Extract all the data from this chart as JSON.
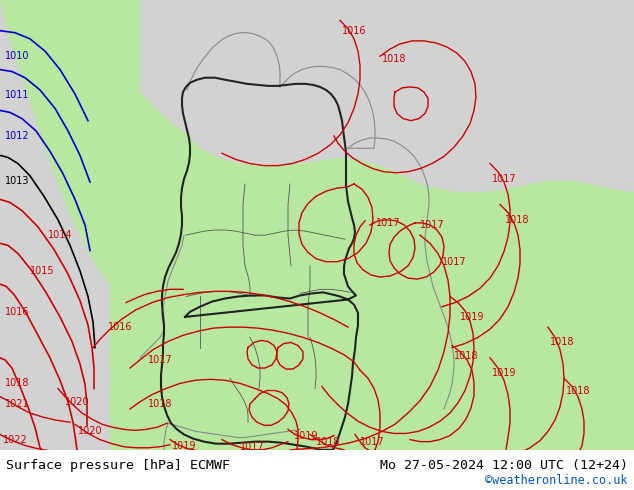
{
  "title_left": "Surface pressure [hPa] ECMWF",
  "title_right": "Mo 27-05-2024 12:00 UTC (12+24)",
  "credit": "©weatheronline.co.uk",
  "credit_color": "#0055cc",
  "fig_width": 6.34,
  "fig_height": 4.9,
  "dpi": 100,
  "footer_text_color": "#000000",
  "footer_fontsize": 9.5,
  "credit_fontsize": 8.5,
  "bg_gray": "#d2d2d2",
  "bg_green": "#b8e8a0",
  "bg_white": "#ffffff",
  "blue_color": "#0000cc",
  "red_color": "#cc0000",
  "black_color": "#000000",
  "gray_border": "#888888",
  "dark_border": "#222222"
}
